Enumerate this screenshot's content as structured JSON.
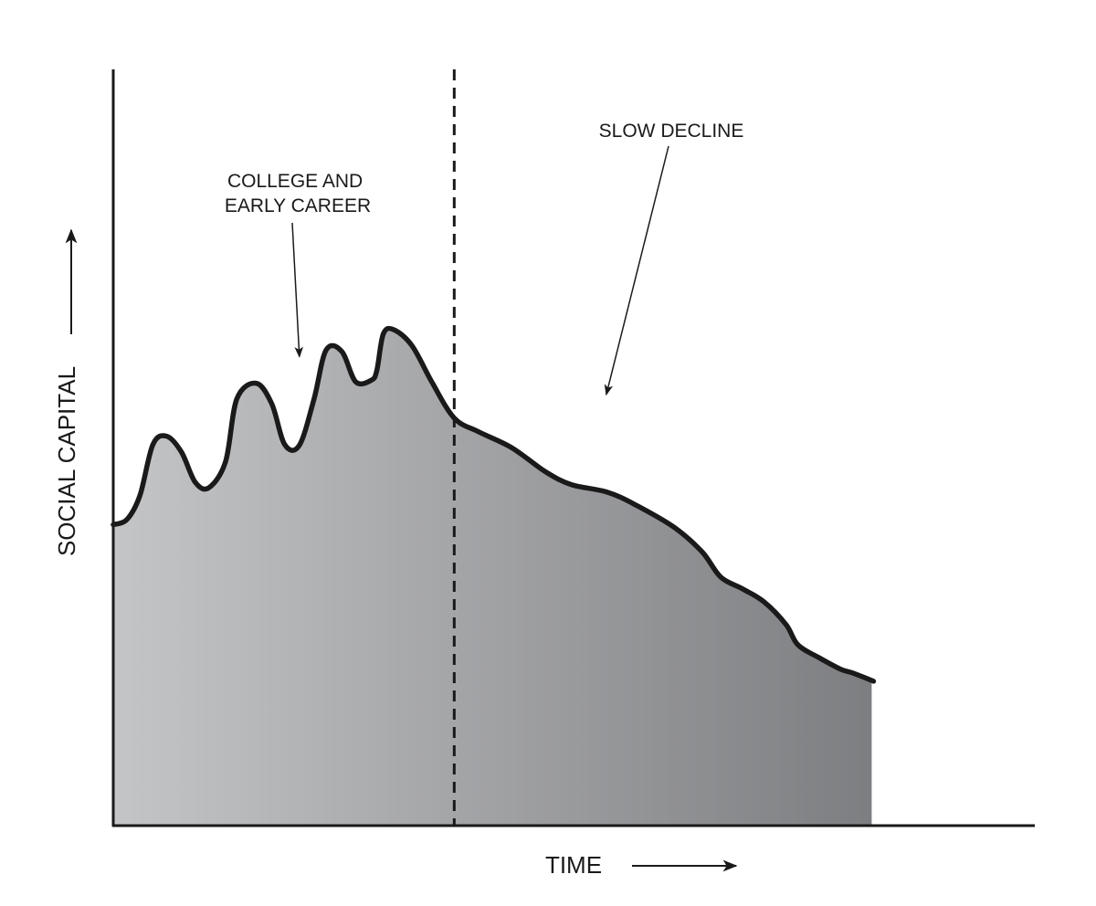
{
  "chart_data": {
    "type": "area",
    "title": "",
    "xlabel": "TIME",
    "ylabel": "SOCIAL CAPITAL",
    "grid": false,
    "legend": "none",
    "fill_gradient": [
      "#c4c5c7",
      "#7d7e81"
    ],
    "line_color": "#1a1a1a",
    "xlim": [
      0,
      100
    ],
    "ylim": [
      0,
      100
    ],
    "series": [
      {
        "points": [
          [
            0,
            39.8
          ],
          [
            1.5,
            40.5
          ],
          [
            2.9,
            43.7
          ],
          [
            4.3,
            50.4
          ],
          [
            5.8,
            51.5
          ],
          [
            7.4,
            49.4
          ],
          [
            8.9,
            45.4
          ],
          [
            10.4,
            44.7
          ],
          [
            12.2,
            48.2
          ],
          [
            13.4,
            56.4
          ],
          [
            15.5,
            58.5
          ],
          [
            17.2,
            55.8
          ],
          [
            18.6,
            50.4
          ],
          [
            20.2,
            50.3
          ],
          [
            21.8,
            56.5
          ],
          [
            23.1,
            62.9
          ],
          [
            24.8,
            62.7
          ],
          [
            26.3,
            58.7
          ],
          [
            28.0,
            58.9
          ],
          [
            28.6,
            60.2
          ],
          [
            29.3,
            65.0
          ],
          [
            30.4,
            65.6
          ],
          [
            32.4,
            63.5
          ],
          [
            34.6,
            58.6
          ],
          [
            37.0,
            53.9
          ],
          [
            39.6,
            52.1
          ],
          [
            43.2,
            50.0
          ],
          [
            46.9,
            46.8
          ],
          [
            49.7,
            45.1
          ],
          [
            53.6,
            44.1
          ],
          [
            56.7,
            42.4
          ],
          [
            60.8,
            39.5
          ],
          [
            63.9,
            36.2
          ],
          [
            65.9,
            32.9
          ],
          [
            68.3,
            31.3
          ],
          [
            70.6,
            29.6
          ],
          [
            73.0,
            26.6
          ],
          [
            74.3,
            23.9
          ],
          [
            76.6,
            22.2
          ],
          [
            78.9,
            20.7
          ],
          [
            80.2,
            20.2
          ],
          [
            82.5,
            19.1
          ]
        ]
      }
    ],
    "marker": {
      "x": 37.0,
      "style": "dashed"
    },
    "annotations": [
      {
        "text": [
          "COLLEGE AND",
          "EARLY CAREER"
        ],
        "target": [
          20.2,
          62.0
        ]
      },
      {
        "text": [
          "SLOW DECLINE"
        ],
        "target": [
          53.5,
          57.0
        ]
      }
    ]
  }
}
